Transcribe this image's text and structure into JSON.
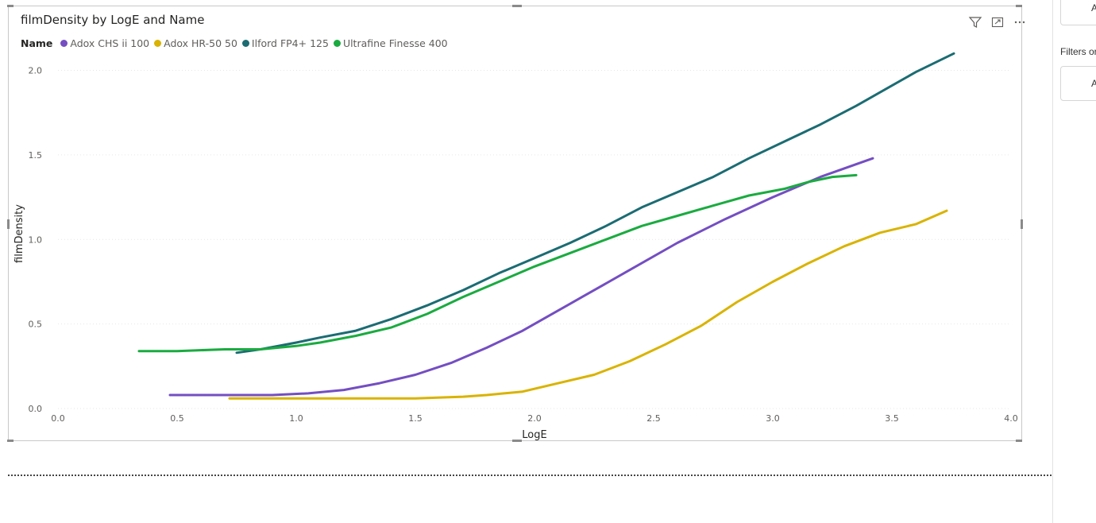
{
  "visual": {
    "title": "filmDensity by LogE and Name",
    "legend_title": "Name"
  },
  "right_pane": {
    "card1_text": "A",
    "filters_label": "Filters or",
    "card2_text": "A"
  },
  "icons": [
    "filter-icon",
    "focus-mode-icon",
    "more-options-icon"
  ],
  "chart_data": {
    "type": "line",
    "title": "filmDensity by LogE and Name",
    "xlabel": "LogE",
    "ylabel": "filmDensity",
    "xlim": [
      0,
      4
    ],
    "ylim": [
      0,
      2.2
    ],
    "xticks": [
      "0.0",
      "0.5",
      "1.0",
      "1.5",
      "2.0",
      "2.5",
      "3.0",
      "3.5",
      "4.0"
    ],
    "yticks": [
      "0.0",
      "0.5",
      "1.0",
      "1.5",
      "2.0"
    ],
    "grid": true,
    "legend_position": "top-left",
    "series": [
      {
        "name": "Adox CHS ii 100",
        "color": "#744EC2",
        "x": [
          0.47,
          0.6,
          0.75,
          0.9,
          1.05,
          1.2,
          1.35,
          1.5,
          1.65,
          1.8,
          1.95,
          2.05,
          2.2,
          2.4,
          2.6,
          2.8,
          3.0,
          3.2,
          3.42
        ],
        "y": [
          0.08,
          0.08,
          0.08,
          0.08,
          0.09,
          0.11,
          0.15,
          0.2,
          0.27,
          0.36,
          0.46,
          0.54,
          0.66,
          0.82,
          0.98,
          1.12,
          1.25,
          1.37,
          1.48
        ]
      },
      {
        "name": "Adox HR-50 50",
        "color": "#D9B300",
        "x": [
          0.72,
          0.9,
          1.1,
          1.3,
          1.5,
          1.7,
          1.8,
          1.95,
          2.1,
          2.25,
          2.4,
          2.55,
          2.7,
          2.85,
          3.0,
          3.15,
          3.3,
          3.45,
          3.6,
          3.73
        ],
        "y": [
          0.06,
          0.06,
          0.06,
          0.06,
          0.06,
          0.07,
          0.08,
          0.1,
          0.15,
          0.2,
          0.28,
          0.38,
          0.49,
          0.63,
          0.75,
          0.86,
          0.96,
          1.04,
          1.09,
          1.17
        ]
      },
      {
        "name": "Ilford FP4+ 125",
        "color": "#1B6C73",
        "x": [
          0.75,
          0.85,
          1.0,
          1.1,
          1.25,
          1.4,
          1.55,
          1.7,
          1.85,
          2.0,
          2.15,
          2.3,
          2.45,
          2.6,
          2.75,
          2.9,
          3.05,
          3.2,
          3.35,
          3.5,
          3.6,
          3.76
        ],
        "y": [
          0.33,
          0.35,
          0.39,
          0.42,
          0.46,
          0.53,
          0.61,
          0.7,
          0.8,
          0.89,
          0.98,
          1.08,
          1.19,
          1.28,
          1.37,
          1.48,
          1.58,
          1.68,
          1.79,
          1.91,
          1.99,
          2.1
        ]
      },
      {
        "name": "Ultrafine Finesse 400",
        "color": "#1AAB40",
        "x": [
          0.34,
          0.5,
          0.7,
          0.85,
          1.0,
          1.1,
          1.25,
          1.4,
          1.55,
          1.7,
          1.85,
          2.0,
          2.15,
          2.3,
          2.45,
          2.6,
          2.75,
          2.9,
          3.05,
          3.15,
          3.25,
          3.35
        ],
        "y": [
          0.34,
          0.34,
          0.35,
          0.35,
          0.37,
          0.39,
          0.43,
          0.48,
          0.56,
          0.66,
          0.75,
          0.84,
          0.92,
          1.0,
          1.08,
          1.14,
          1.2,
          1.26,
          1.3,
          1.34,
          1.37,
          1.38
        ]
      }
    ]
  }
}
